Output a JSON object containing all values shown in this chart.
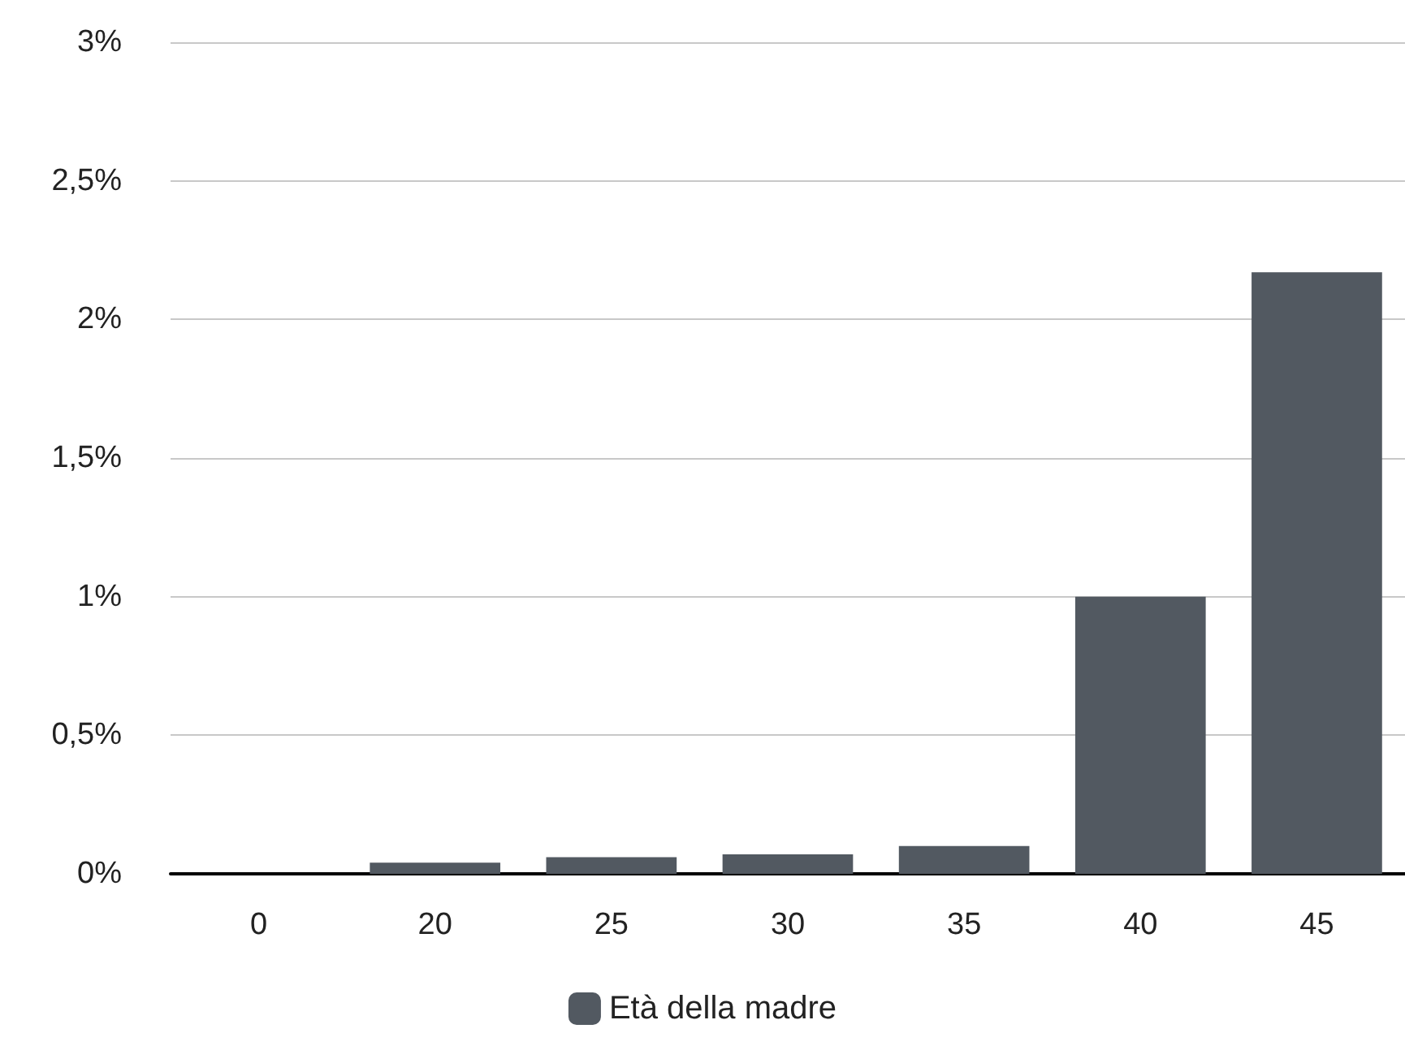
{
  "chart_data": {
    "type": "bar",
    "categories": [
      "0",
      "20",
      "25",
      "30",
      "35",
      "40",
      "45"
    ],
    "series": [
      {
        "name": "Età della madre",
        "color": "#525961",
        "values": [
          0,
          0.04,
          0.06,
          0.07,
          0.1,
          1,
          2.17
        ]
      }
    ],
    "ylim": [
      0,
      3
    ],
    "yticks": [
      {
        "value": 0,
        "label": "0%"
      },
      {
        "value": 0.5,
        "label": "0,5%"
      },
      {
        "value": 1,
        "label": "1%"
      },
      {
        "value": 1.5,
        "label": "1,5%"
      },
      {
        "value": 2,
        "label": "2%"
      },
      {
        "value": 2.5,
        "label": "2,5%"
      },
      {
        "value": 3,
        "label": "3%"
      }
    ],
    "grid": "y",
    "legend": "bottom"
  }
}
